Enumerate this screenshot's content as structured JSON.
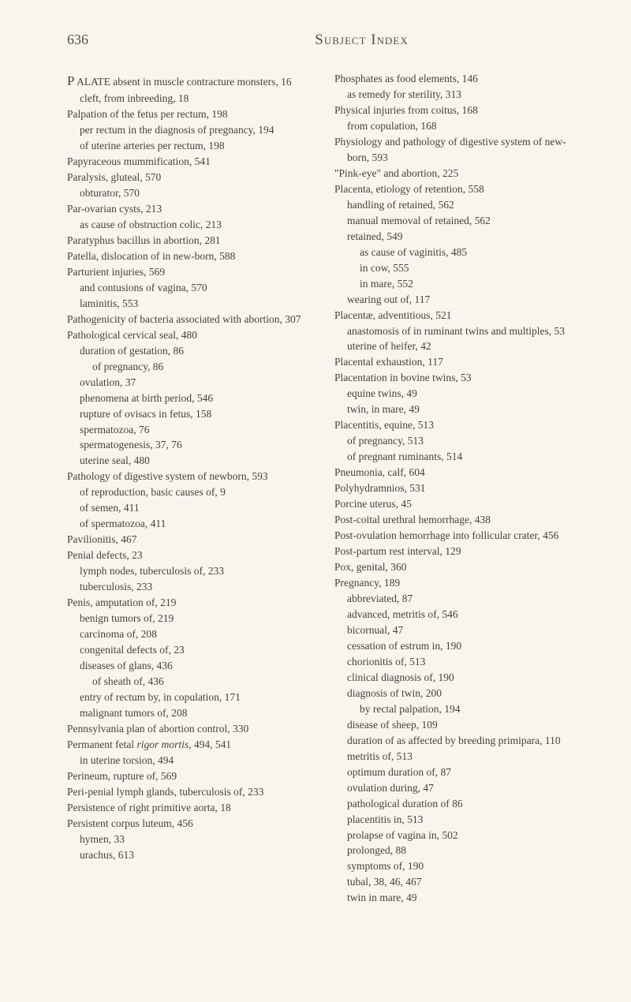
{
  "pageNumber": "636",
  "title": "Subject Index",
  "leftColumn": [
    {
      "type": "main",
      "initial": "P",
      "text": "ALATE absent in muscle contracture monsters, 16"
    },
    {
      "type": "sub",
      "text": "cleft, from inbreeding, 18"
    },
    {
      "type": "main",
      "text": "Palpation of the fetus per rectum, 198"
    },
    {
      "type": "sub",
      "text": "per rectum in the diagnosis of pregnancy, 194"
    },
    {
      "type": "sub",
      "text": "of uterine arteries per rectum, 198"
    },
    {
      "type": "main",
      "text": "Papyraceous mummification, 541"
    },
    {
      "type": "main",
      "text": "Paralysis, gluteal, 570"
    },
    {
      "type": "sub",
      "text": "obturator, 570"
    },
    {
      "type": "main",
      "text": "Par-ovarian cysts, 213"
    },
    {
      "type": "sub",
      "text": "as cause of obstruction colic, 213"
    },
    {
      "type": "main",
      "text": "Paratyphus bacillus in abortion, 281"
    },
    {
      "type": "main",
      "text": "Patella, dislocation of in new-born, 588"
    },
    {
      "type": "main",
      "text": "Parturient injuries, 569"
    },
    {
      "type": "sub",
      "text": "and contusions of vagina, 570"
    },
    {
      "type": "sub",
      "text": "laminitis, 553"
    },
    {
      "type": "main",
      "text": "Pathogenicity of bacteria associated with abortion, 307"
    },
    {
      "type": "main",
      "text": "Pathological cervical seal, 480"
    },
    {
      "type": "sub",
      "text": "duration of gestation, 86"
    },
    {
      "type": "sub2",
      "text": "of pregnancy, 86"
    },
    {
      "type": "sub",
      "text": "ovulation, 37"
    },
    {
      "type": "sub",
      "text": "phenomena at birth period, 546"
    },
    {
      "type": "sub",
      "text": "rupture of ovisacs in fetus, 158"
    },
    {
      "type": "sub",
      "text": "spermatozoa, 76"
    },
    {
      "type": "sub",
      "text": "spermatogenesis, 37, 76"
    },
    {
      "type": "sub",
      "text": "uterine seal, 480"
    },
    {
      "type": "main",
      "text": "Pathology of digestive system of newborn, 593"
    },
    {
      "type": "sub",
      "text": "of reproduction, basic causes of, 9"
    },
    {
      "type": "sub",
      "text": "of semen, 411"
    },
    {
      "type": "sub",
      "text": "of spermatozoa, 411"
    },
    {
      "type": "main",
      "text": "Pavilionitis, 467"
    },
    {
      "type": "main",
      "text": "Penial defects, 23"
    },
    {
      "type": "sub",
      "text": "lymph nodes, tuberculosis of, 233"
    },
    {
      "type": "sub",
      "text": "tuberculosis, 233"
    },
    {
      "type": "main",
      "text": "Penis, amputation of, 219"
    },
    {
      "type": "sub",
      "text": "benign tumors of, 219"
    },
    {
      "type": "sub",
      "text": "carcinoma of, 208"
    },
    {
      "type": "sub",
      "text": "congenital defects of, 23"
    },
    {
      "type": "sub",
      "text": "diseases of glans, 436"
    },
    {
      "type": "sub2",
      "text": "of sheath of, 436"
    },
    {
      "type": "sub",
      "text": "entry of rectum by, in copulation, 171"
    },
    {
      "type": "sub",
      "text": "malignant tumors of, 208"
    },
    {
      "type": "main",
      "text": "Pennsylvania plan of abortion control, 330"
    },
    {
      "type": "main-italic",
      "text": "Permanent fetal ",
      "italic": "rigor mortis",
      "after": ", 494, 541"
    },
    {
      "type": "sub",
      "text": "in uterine torsion, 494"
    },
    {
      "type": "main",
      "text": "Perineum, rupture of, 569"
    },
    {
      "type": "main",
      "text": "Peri-penial lymph glands, tuberculosis of, 233"
    },
    {
      "type": "main",
      "text": "Persistence of right primitive aorta, 18"
    },
    {
      "type": "main",
      "text": "Persistent corpus luteum, 456"
    },
    {
      "type": "sub",
      "text": "hymen, 33"
    },
    {
      "type": "sub",
      "text": "urachus, 613"
    }
  ],
  "rightColumn": [
    {
      "type": "main",
      "text": "Phosphates as food elements, 146"
    },
    {
      "type": "sub",
      "text": "as remedy for sterility, 313"
    },
    {
      "type": "main",
      "text": "Physical injuries from coitus, 168"
    },
    {
      "type": "sub",
      "text": "from copulation, 168"
    },
    {
      "type": "main",
      "text": "Physiology and pathology of digestive system of new-born, 593"
    },
    {
      "type": "main",
      "text": "\"Pink-eye\" and abortion, 225"
    },
    {
      "type": "main",
      "text": "Placenta, etiology of retention, 558"
    },
    {
      "type": "sub",
      "text": "handling of retained, 562"
    },
    {
      "type": "sub",
      "text": "manual memoval of retained, 562"
    },
    {
      "type": "sub",
      "text": "retained, 549"
    },
    {
      "type": "sub2",
      "text": "as cause of vaginitis, 485"
    },
    {
      "type": "sub2",
      "text": "in cow, 555"
    },
    {
      "type": "sub2",
      "text": "in mare, 552"
    },
    {
      "type": "sub",
      "text": "wearing out of, 117"
    },
    {
      "type": "main",
      "text": "Placentæ, adventitious, 521"
    },
    {
      "type": "sub",
      "text": "anastomosis of in ruminant twins and multiples, 53"
    },
    {
      "type": "sub",
      "text": "uterine of heifer, 42"
    },
    {
      "type": "main",
      "text": "Placental exhaustion, 117"
    },
    {
      "type": "main",
      "text": "Placentation in bovine twins, 53"
    },
    {
      "type": "sub",
      "text": "equine twins, 49"
    },
    {
      "type": "sub",
      "text": "twin, in mare, 49"
    },
    {
      "type": "main",
      "text": "Placentitis, equine, 513"
    },
    {
      "type": "sub",
      "text": "of pregnancy, 513"
    },
    {
      "type": "sub",
      "text": "of pregnant ruminants, 514"
    },
    {
      "type": "main",
      "text": "Pneumonia, calf, 604"
    },
    {
      "type": "main",
      "text": "Polyhydramnios, 531"
    },
    {
      "type": "main",
      "text": "Porcine uterus, 45"
    },
    {
      "type": "main",
      "text": "Post-coital urethral hemorrhage, 438"
    },
    {
      "type": "main",
      "text": "Post-ovulation hemorrhage into follicular crater, 456"
    },
    {
      "type": "main",
      "text": "Post-partum rest interval, 129"
    },
    {
      "type": "main",
      "text": "Pox, genital, 360"
    },
    {
      "type": "main",
      "text": "Pregnancy, 189"
    },
    {
      "type": "sub",
      "text": "abbreviated, 87"
    },
    {
      "type": "sub",
      "text": "advanced, metritis of, 546"
    },
    {
      "type": "sub",
      "text": "bicornual, 47"
    },
    {
      "type": "sub",
      "text": "cessation of estrum in, 190"
    },
    {
      "type": "sub",
      "text": "chorionitis of, 513"
    },
    {
      "type": "sub",
      "text": "clinical diagnosis of, 190"
    },
    {
      "type": "sub",
      "text": "diagnosis of twin, 200"
    },
    {
      "type": "sub2",
      "text": "by rectal palpation, 194"
    },
    {
      "type": "sub",
      "text": "disease of sheep, 109"
    },
    {
      "type": "sub",
      "text": "duration of as affected by breeding primipara, 110"
    },
    {
      "type": "sub",
      "text": "metritis of, 513"
    },
    {
      "type": "sub",
      "text": "optimum duration of, 87"
    },
    {
      "type": "sub",
      "text": "ovulation during, 47"
    },
    {
      "type": "sub",
      "text": "pathological duration of 86"
    },
    {
      "type": "sub",
      "text": "placentitis in, 513"
    },
    {
      "type": "sub",
      "text": "prolapse of vagina in, 502"
    },
    {
      "type": "sub",
      "text": "prolonged, 88"
    },
    {
      "type": "sub",
      "text": "symptoms of, 190"
    },
    {
      "type": "sub",
      "text": "tubal, 38, 46, 467"
    },
    {
      "type": "sub",
      "text": "twin in mare, 49"
    }
  ]
}
